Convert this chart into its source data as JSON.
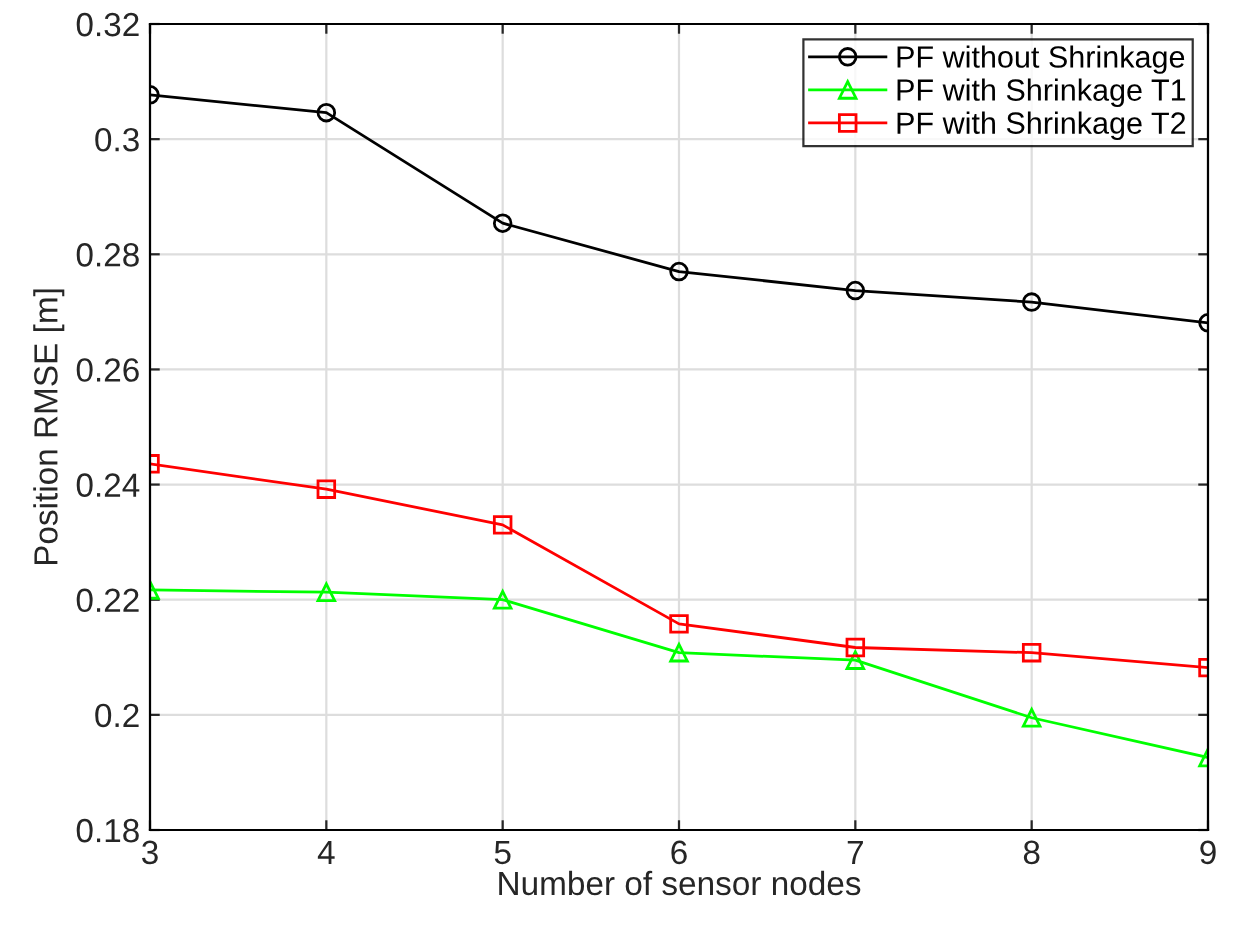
{
  "chart_data": {
    "type": "line",
    "xlabel": "Number of sensor nodes",
    "ylabel": "Position RMSE [m]",
    "x": [
      3,
      4,
      5,
      6,
      7,
      8,
      9
    ],
    "series": [
      {
        "name": "PF without Shrinkage",
        "color": "#000000",
        "marker": "circle",
        "values": [
          0.3077,
          0.3046,
          0.2854,
          0.277,
          0.2737,
          0.2717,
          0.2681
        ]
      },
      {
        "name": "PF with Shrinkage T1",
        "color": "#00ff00",
        "marker": "triangle",
        "values": [
          0.2217,
          0.2213,
          0.22,
          0.2108,
          0.2095,
          0.1995,
          0.1926
        ]
      },
      {
        "name": "PF with Shrinkage T2",
        "color": "#ff0000",
        "marker": "square",
        "values": [
          0.2436,
          0.2392,
          0.233,
          0.2158,
          0.2117,
          0.2108,
          0.2082
        ]
      }
    ],
    "xlim": [
      3,
      9
    ],
    "xticks": [
      3,
      4,
      5,
      6,
      7,
      8,
      9
    ],
    "ylim": [
      0.18,
      0.32
    ],
    "yticks": [
      0.18,
      0.2,
      0.22,
      0.24,
      0.26,
      0.28,
      0.3,
      0.32
    ],
    "grid": true,
    "legend": "top right",
    "line_style": "solid"
  }
}
